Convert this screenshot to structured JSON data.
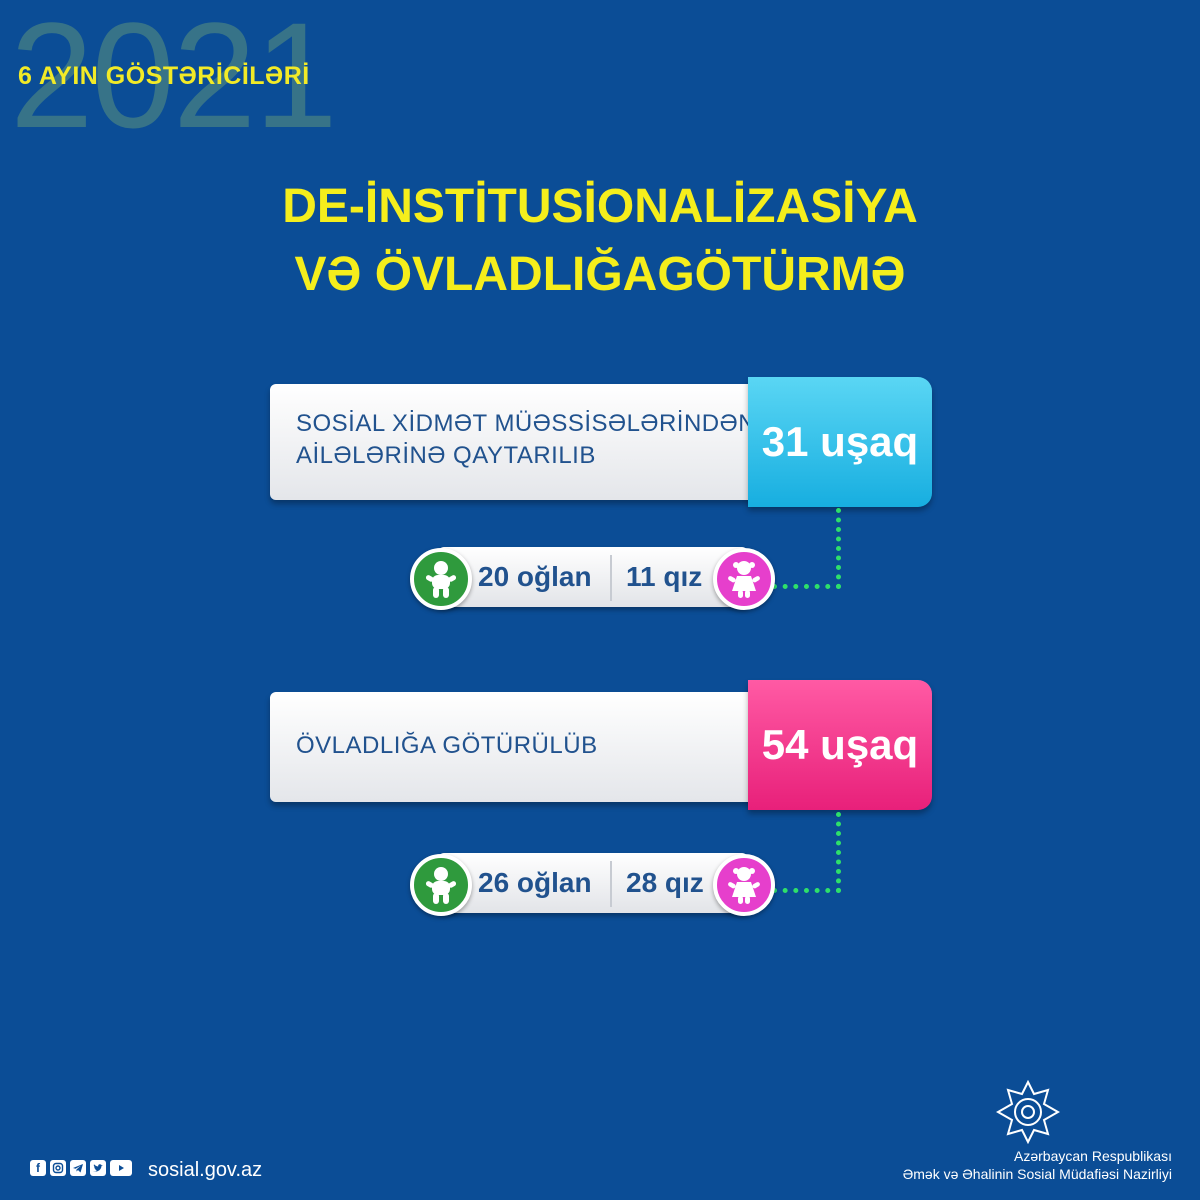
{
  "header": {
    "year": "2021",
    "period": "6 AYIN GÖSTƏRİCİLƏRİ"
  },
  "title": {
    "line1": "DE-İNSTİTUSİONALİZASİYA",
    "line2": "VƏ ÖVLADLIĞAGÖTÜRMƏ"
  },
  "stats": [
    {
      "label_line1": "SOSİAL XİDMƏT MÜƏSSİSƏLƏRİNDƏN",
      "label_line2": "AİLƏLƏRİNƏ QAYTARILIB",
      "value": "31 uşaq",
      "boys": "20 oğlan",
      "girls": "11 qız"
    },
    {
      "label_line1": "ÖVLADLIĞA GÖTÜRÜLÜB",
      "value": "54 uşaq",
      "boys": "26 oğlan",
      "girls": "28 qız"
    }
  ],
  "footer": {
    "social_icons": [
      "facebook-icon",
      "instagram-icon",
      "telegram-icon",
      "twitter-icon",
      "youtube-icon"
    ],
    "website": "sosial.gov.az",
    "org_line1": "Azərbaycan Respublikası",
    "org_line2": "Əmək və Əhalinin Sosial Müdafiəsi Nazirliyi"
  },
  "colors": {
    "background": "#0b4d96",
    "title": "#f5ee1c",
    "cyan": "#17aee0",
    "pink": "#e8207a",
    "boy_green": "#2f9a3d",
    "girl_magenta": "#e63fcc",
    "connector": "#2ee06a"
  }
}
